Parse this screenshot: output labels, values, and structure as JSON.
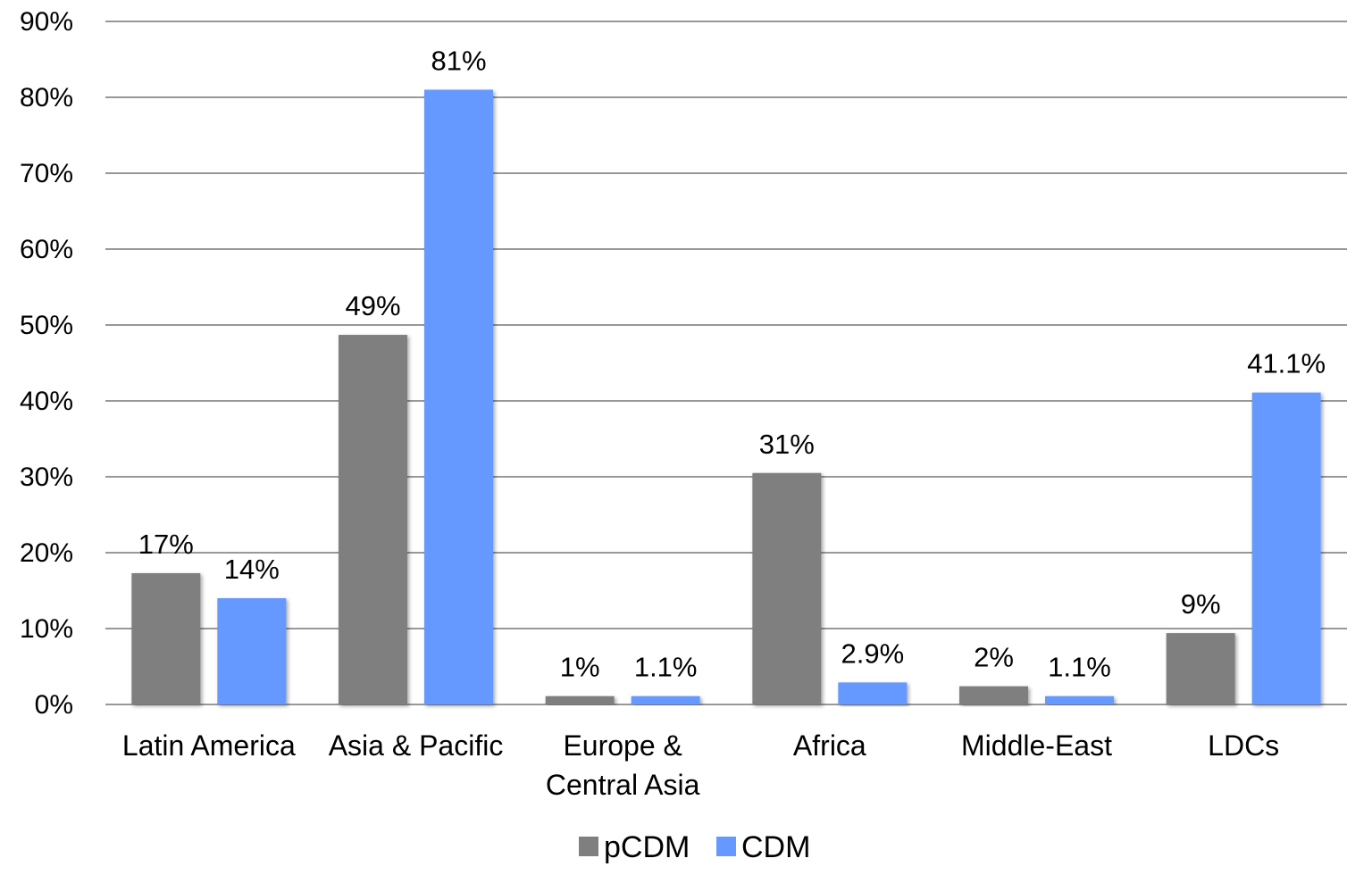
{
  "chart_data": {
    "type": "bar",
    "categories": [
      [
        "Latin America"
      ],
      [
        "Asia & Pacific"
      ],
      [
        "Europe &",
        "Central Asia"
      ],
      [
        "Africa"
      ],
      [
        "Middle-East"
      ],
      [
        "LDCs"
      ]
    ],
    "series": [
      {
        "name": "pCDM",
        "color": "#7f7f7f",
        "values": [
          17.3,
          48.7,
          1.1,
          30.5,
          2.4,
          9.4
        ],
        "labels": [
          "17%",
          "49%",
          "1%",
          "31%",
          "2%",
          "9%"
        ]
      },
      {
        "name": "CDM",
        "color": "#6699ff",
        "values": [
          14,
          81,
          1.1,
          2.9,
          1.1,
          41.1
        ],
        "labels": [
          "14%",
          "81%",
          "1.1%",
          "2.9%",
          "1.1%",
          "41.1%"
        ]
      }
    ],
    "ylim": [
      0,
      90
    ],
    "yticks": [
      0,
      10,
      20,
      30,
      40,
      50,
      60,
      70,
      80,
      90
    ],
    "ytick_labels": [
      "0%",
      "10%",
      "20%",
      "30%",
      "40%",
      "50%",
      "60%",
      "70%",
      "80%",
      "90%"
    ],
    "grid": true,
    "legend_position": "bottom"
  }
}
